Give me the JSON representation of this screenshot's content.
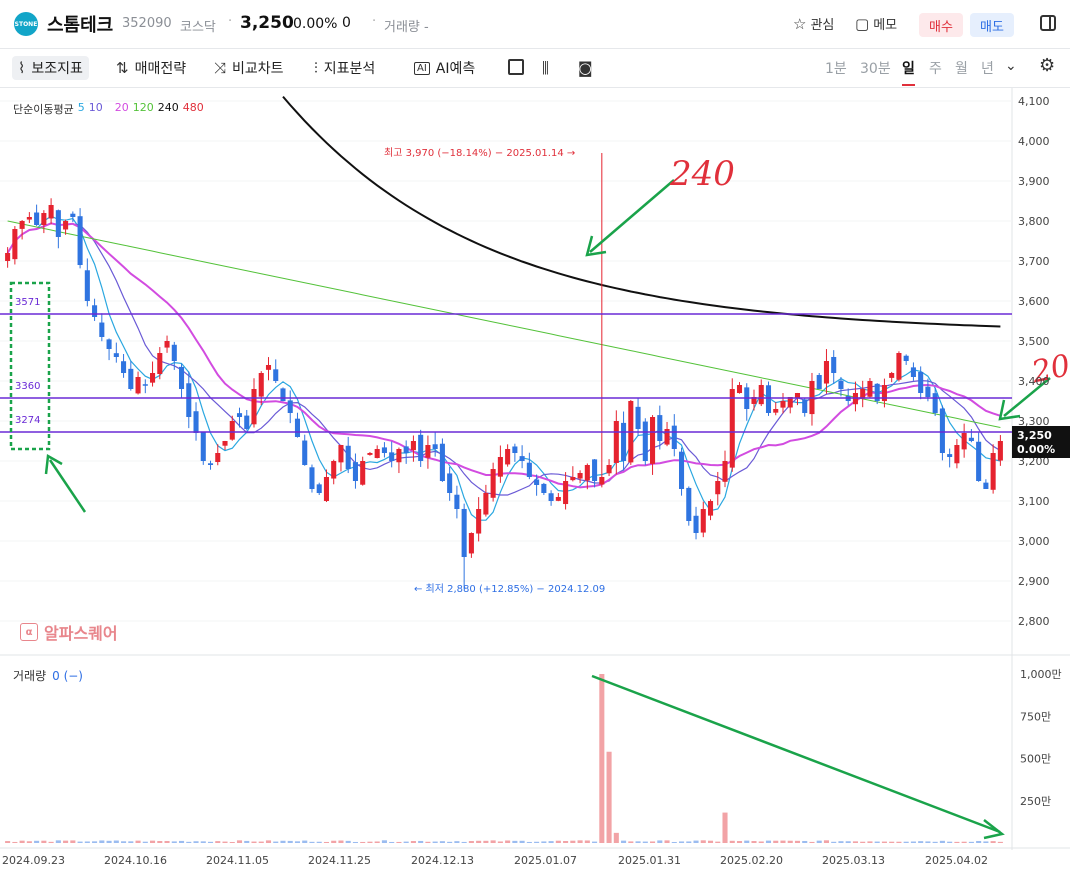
{
  "header": {
    "logo_text": "STONE",
    "stock_name": "스톰테크",
    "stock_code": "352090",
    "market": "코스닥",
    "price": "3,250",
    "change_pct": "0.00%",
    "change": "0",
    "volume_label": "거래량 -",
    "watch_label": "관심",
    "memo_label": "메모",
    "buy_label": "매수",
    "sell_label": "매도",
    "colors": {
      "buy": "#e0303b",
      "sell": "#2f6fe4"
    }
  },
  "toolbar": {
    "tools": [
      "보조지표",
      "매매전략",
      "비교차트",
      "지표분석",
      "AI예측"
    ],
    "periods": [
      "1분",
      "30분",
      "일",
      "주",
      "월",
      "년"
    ],
    "active_period": "일"
  },
  "chart": {
    "ma_legend": {
      "label": "단순이동평균",
      "periods": [
        {
          "v": "5",
          "color": "#2aa7e0"
        },
        {
          "v": "10",
          "color": "#6a5ad6"
        },
        {
          "v": "20",
          "color": "#d24ce0"
        },
        {
          "v": "120",
          "color": "#54c23a"
        },
        {
          "v": "240",
          "color": "#111111"
        },
        {
          "v": "480",
          "color": "#e0303b"
        }
      ]
    },
    "high_label": "최고 3,970 (−18.14%) − 2025.01.14 →",
    "low_label": "← 최저 2,880 (+12.85%) − 2024.12.09",
    "y_ticks": [
      "4,100",
      "4,000",
      "3,900",
      "3,800",
      "3,700",
      "3,600",
      "3,500",
      "3,400",
      "3,300",
      "3,200",
      "3,100",
      "3,000",
      "2,900",
      "2,800"
    ],
    "last_price_badge": "3,250",
    "last_pct_badge": "0.00%",
    "hlines": [
      "3571",
      "3360",
      "3274"
    ],
    "annotations": [
      "240",
      "20"
    ],
    "brand": "알파스퀘어",
    "volume_label": "거래량",
    "volume_value": "0 (−)",
    "vol_ticks": [
      "1,000만",
      "750만",
      "500만",
      "250만"
    ],
    "x_ticks": [
      "2024.09.23",
      "2024.10.16",
      "2024.11.05",
      "2024.11.25",
      "2024.12.13",
      "2025.01.07",
      "2025.01.31",
      "2025.02.20",
      "2025.03.13",
      "2025.04.02"
    ]
  },
  "chart_data": {
    "type": "candlestick",
    "y_range": [
      2750,
      4130
    ],
    "volume_range_man": [
      0,
      1000
    ],
    "horizontal_lines": [
      3571,
      3360,
      3274
    ],
    "high": {
      "price": 3970,
      "date": "2025.01.14"
    },
    "low": {
      "price": 2880,
      "date": "2024.12.09"
    },
    "closes": [
      3720,
      3780,
      3800,
      3810,
      3790,
      3820,
      3840,
      3760,
      3800,
      3810,
      3690,
      3600,
      3560,
      3510,
      3480,
      3460,
      3420,
      3380,
      3410,
      3390,
      3420,
      3470,
      3500,
      3450,
      3380,
      3310,
      3270,
      3200,
      3190,
      3220,
      3250,
      3300,
      3310,
      3280,
      3380,
      3420,
      3440,
      3400,
      3350,
      3320,
      3260,
      3190,
      3130,
      3120,
      3160,
      3200,
      3240,
      3180,
      3150,
      3200,
      3220,
      3230,
      3220,
      3200,
      3230,
      3220,
      3250,
      3200,
      3240,
      3230,
      3150,
      3120,
      3080,
      2960,
      3020,
      3080,
      3120,
      3180,
      3210,
      3230,
      3220,
      3200,
      3160,
      3140,
      3120,
      3100,
      3110,
      3150,
      3160,
      3170,
      3190,
      3150,
      3160,
      3190,
      3300,
      3200,
      3350,
      3280,
      3200,
      3310,
      3250,
      3280,
      3230,
      3130,
      3050,
      3020,
      3080,
      3100,
      3150,
      3200,
      3380,
      3390,
      3330,
      3360,
      3390,
      3320,
      3330,
      3350,
      3360,
      3370,
      3320,
      3400,
      3380,
      3450,
      3420,
      3380,
      3350,
      3370,
      3380,
      3400,
      3350,
      3390,
      3420,
      3470,
      3450,
      3410,
      3370,
      3360,
      3320,
      3220,
      3210,
      3240,
      3270,
      3250,
      3150,
      3130,
      3220,
      3250
    ],
    "volume_spikes_man": [
      {
        "date": "2025.01.14",
        "value": 1000
      },
      {
        "date": "2025.01.15",
        "value": 540
      },
      {
        "date": "2025.02.13",
        "value": 180
      }
    ]
  }
}
